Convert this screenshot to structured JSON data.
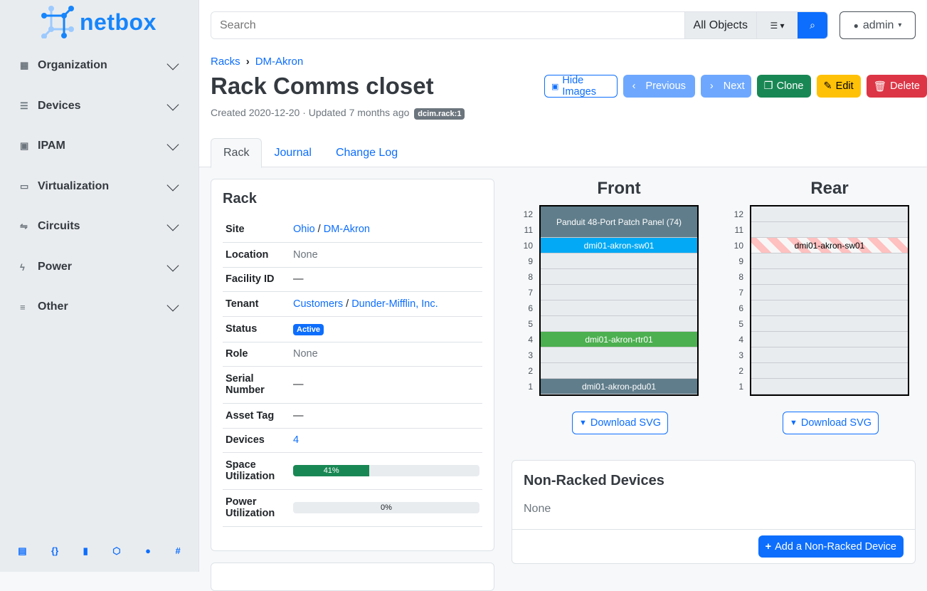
{
  "brand": "netbox",
  "sidebar": {
    "items": [
      {
        "label": "Organization",
        "icon": "building-icon"
      },
      {
        "label": "Devices",
        "icon": "server-icon"
      },
      {
        "label": "IPAM",
        "icon": "ip-icon"
      },
      {
        "label": "Virtualization",
        "icon": "monitor-icon"
      },
      {
        "label": "Circuits",
        "icon": "circuit-icon"
      },
      {
        "label": "Power",
        "icon": "bolt-icon"
      },
      {
        "label": "Other",
        "icon": "lines-icon"
      }
    ],
    "footer_icons": [
      "book-icon",
      "api-icon",
      "bookmark-icon",
      "graphql-icon",
      "github-icon",
      "slack-icon"
    ]
  },
  "search": {
    "placeholder": "Search",
    "scope": "All Objects"
  },
  "user": {
    "name": "admin"
  },
  "breadcrumb": [
    "Racks",
    "DM-Akron"
  ],
  "title": "Rack Comms closet",
  "meta": {
    "text": "Created 2020-12-20 · Updated 7 months ago",
    "id": "dcim.rack:1"
  },
  "actions": {
    "hide_images": "Hide Images",
    "previous": "Previous",
    "next": "Next",
    "clone": "Clone",
    "edit": "Edit",
    "delete": "Delete"
  },
  "tabs": [
    "Rack",
    "Journal",
    "Change Log"
  ],
  "rack_card": {
    "title": "Rack",
    "rows": {
      "site": {
        "k": "Site",
        "v1": "Ohio",
        "sep": "/",
        "v2": "DM-Akron"
      },
      "location": {
        "k": "Location",
        "v": "None"
      },
      "facility": {
        "k": "Facility ID",
        "v": "—"
      },
      "tenant": {
        "k": "Tenant",
        "v1": "Customers",
        "sep": "/",
        "v2": "Dunder-Mifflin, Inc."
      },
      "status": {
        "k": "Status",
        "v": "Active"
      },
      "role": {
        "k": "Role",
        "v": "None"
      },
      "serial": {
        "k": "Serial Number",
        "v": "—"
      },
      "asset": {
        "k": "Asset Tag",
        "v": "—"
      },
      "devices": {
        "k": "Devices",
        "v": "4"
      },
      "space": {
        "k": "Space Utilization",
        "v": "41%",
        "percent": 41
      },
      "power": {
        "k": "Power Utilization",
        "v": "0%",
        "percent": 0
      }
    }
  },
  "elevations": {
    "front_title": "Front",
    "rear_title": "Rear",
    "download": "Download SVG",
    "front": {
      "units": [
        12,
        11,
        10,
        9,
        8,
        7,
        6,
        5,
        4,
        3,
        2,
        1
      ],
      "devices": [
        {
          "name": "Panduit 48-Port Patch Panel (74)",
          "top_u": 12,
          "height": 2,
          "color": "#607d8b"
        },
        {
          "name": "dmi01-akron-sw01",
          "top_u": 10,
          "height": 1,
          "color": "#03a9f4"
        },
        {
          "name": "dmi01-akron-rtr01",
          "top_u": 4,
          "height": 1,
          "color": "#4caf50"
        },
        {
          "name": "dmi01-akron-pdu01",
          "top_u": 1,
          "height": 1,
          "color": "#607d8b"
        }
      ]
    },
    "rear": {
      "units": [
        12,
        11,
        10,
        9,
        8,
        7,
        6,
        5,
        4,
        3,
        2,
        1
      ],
      "devices": [
        {
          "name": "dmi01-akron-sw01",
          "top_u": 10,
          "height": 1,
          "occupied_from_front": true
        }
      ]
    }
  },
  "non_racked": {
    "title": "Non-Racked Devices",
    "value": "None",
    "add": "Add a Non-Racked Device"
  }
}
